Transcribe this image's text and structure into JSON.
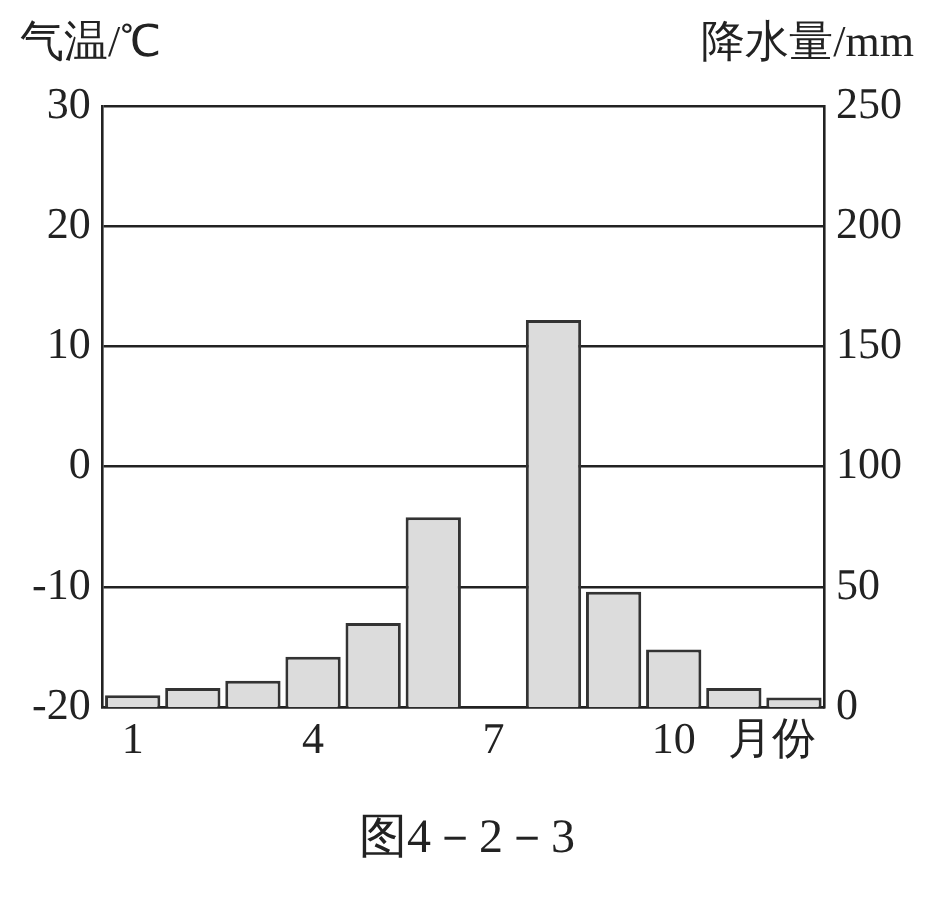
{
  "chart_data": {
    "type": "bar",
    "xlabel": "月份",
    "ylabel": "气温/℃",
    "y2label": "降水量/mm",
    "annotations": [
      "图4－2－3"
    ],
    "categories": [
      "1",
      null,
      null,
      "4",
      null,
      null,
      "7",
      null,
      null,
      "10",
      null,
      null
    ],
    "series": [
      {
        "axis": "y2",
        "color": "#dcdcdc",
        "values": [
          5,
          8,
          11,
          21,
          35,
          79,
          null,
          161,
          48,
          24,
          8,
          4
        ]
      }
    ],
    "ylim": [
      -20,
      30
    ],
    "yticks": [
      -20,
      -10,
      0,
      10,
      20,
      30
    ],
    "y2lim": [
      0,
      250
    ],
    "y2ticks": [
      0,
      50,
      100,
      150,
      200,
      250
    ],
    "grid": "y",
    "legend": false
  }
}
